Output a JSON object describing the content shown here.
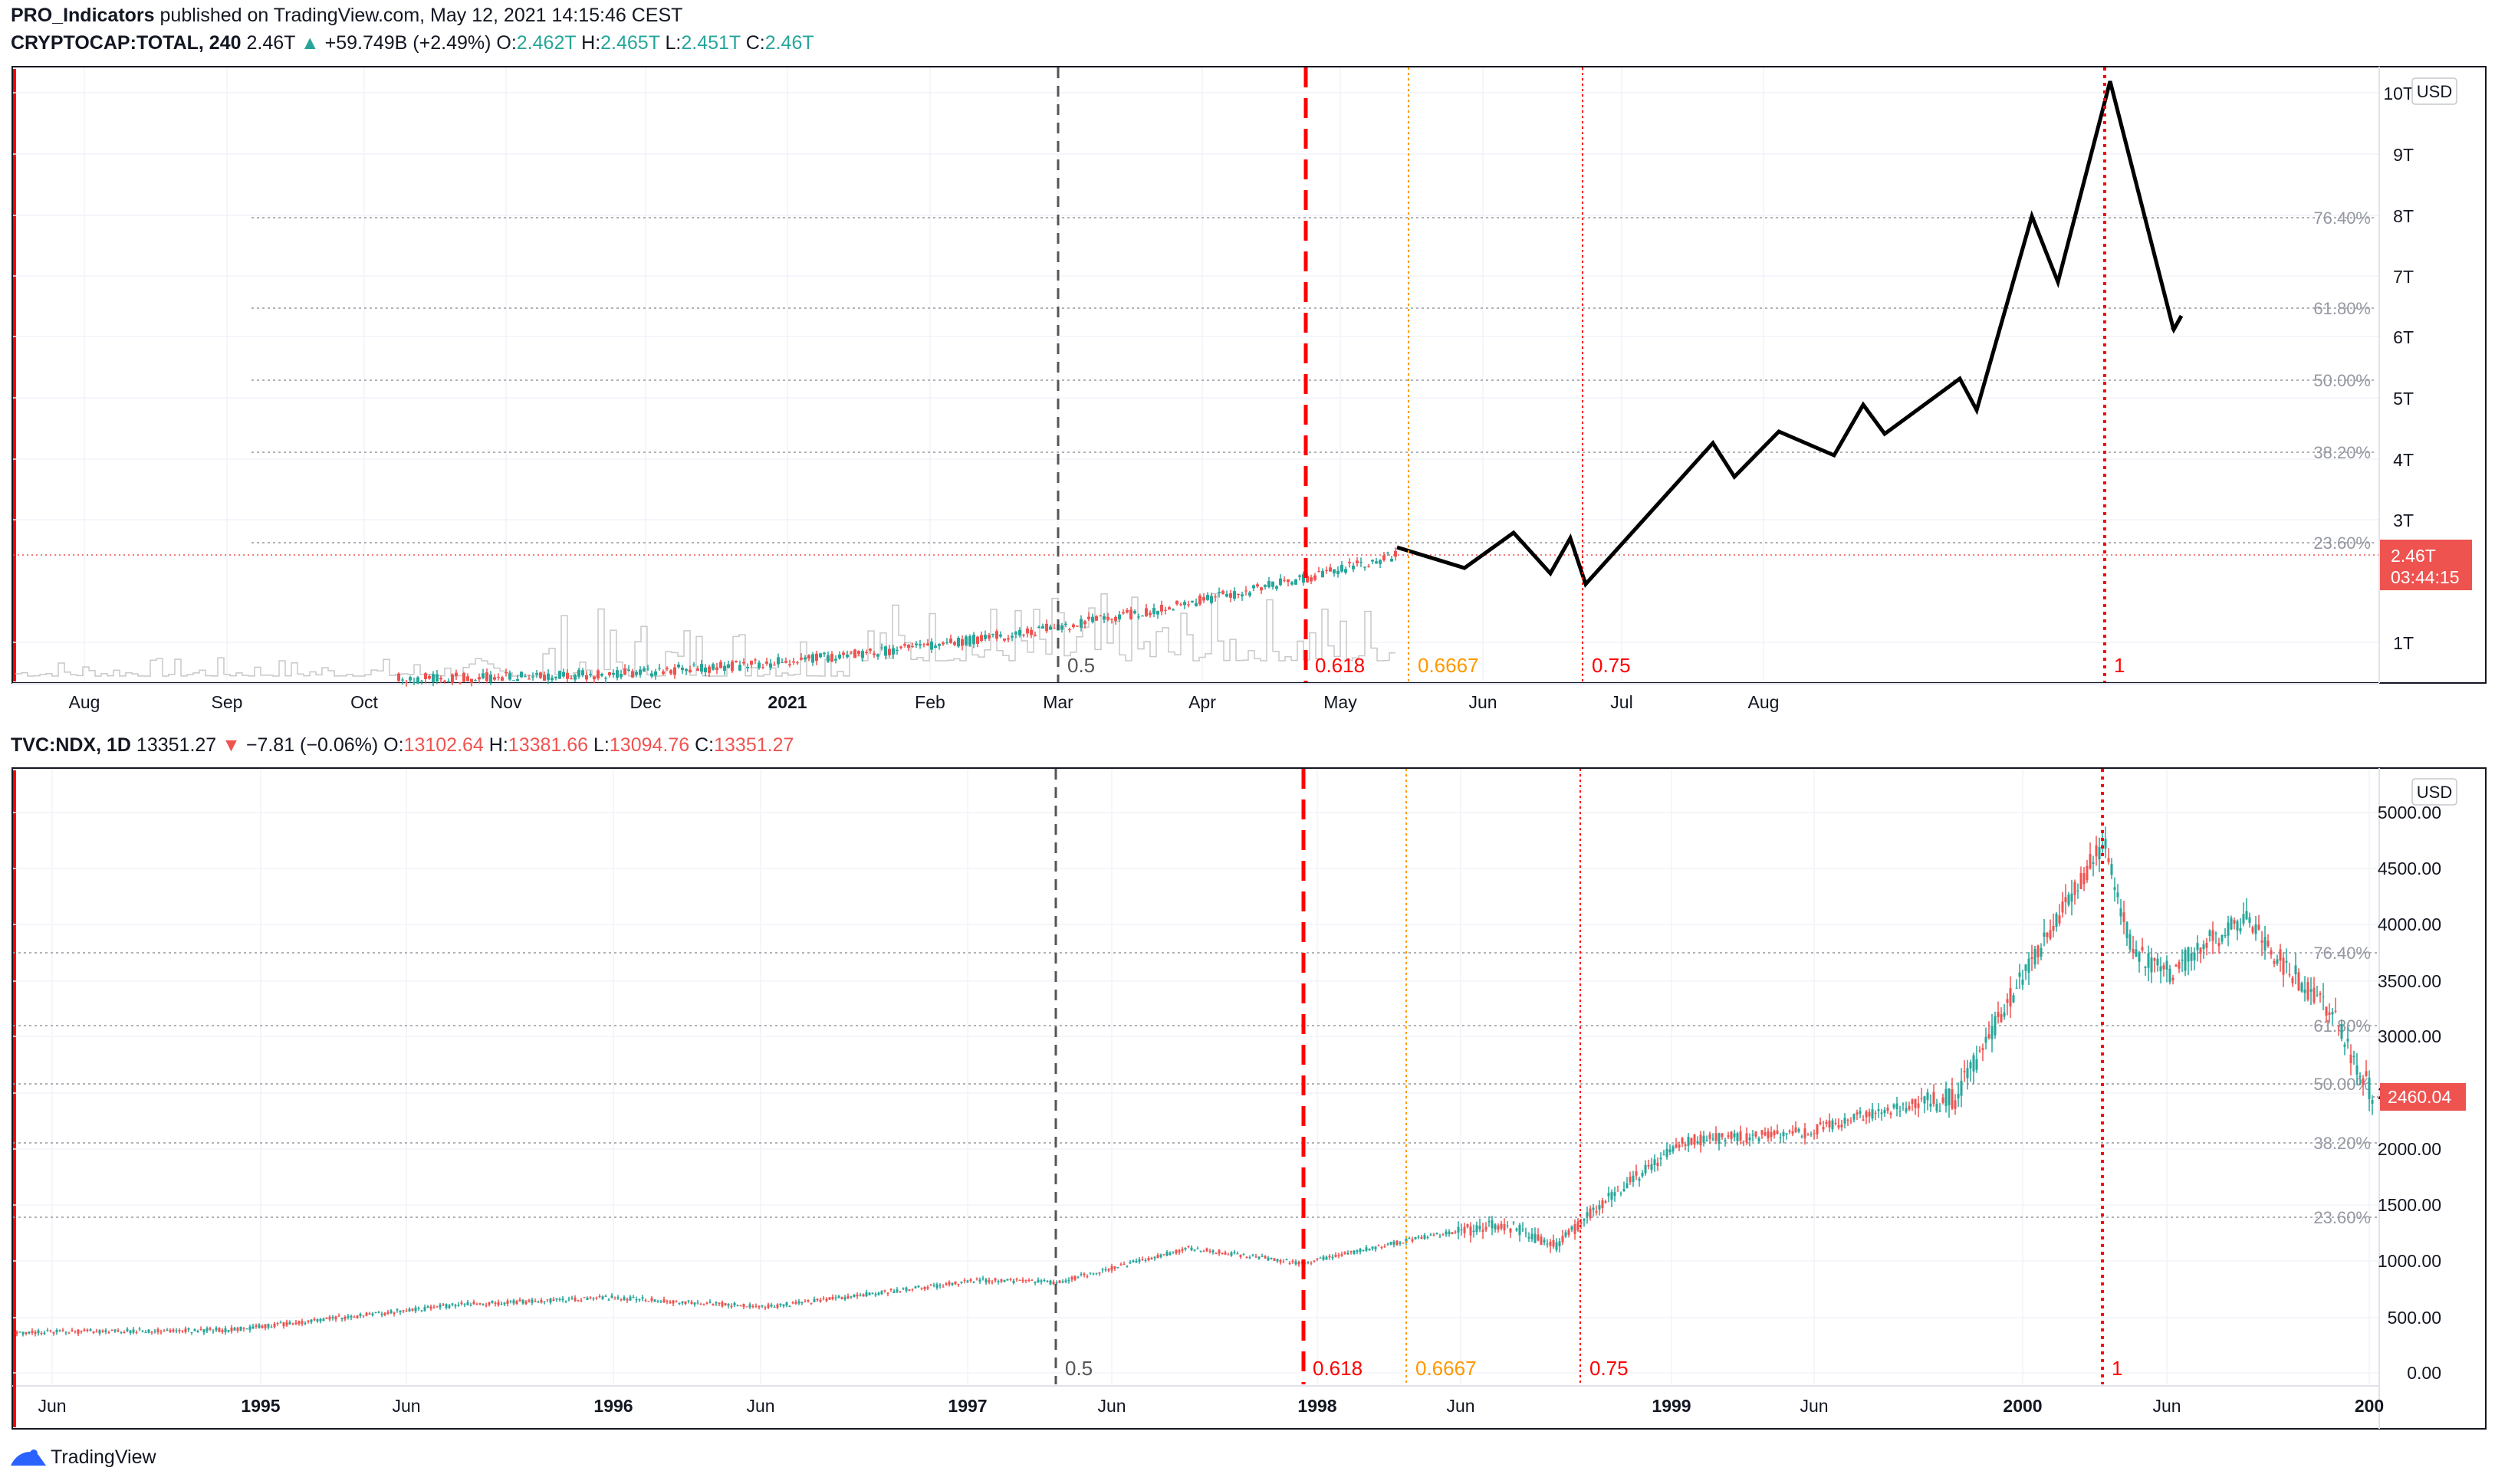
{
  "publisher": {
    "author": "PRO_Indicators",
    "text": "published on TradingView.com, May 12, 2021 14:15:46 CEST"
  },
  "branding": {
    "logo_text": "TradingView"
  },
  "colors": {
    "up": "#26a69a",
    "down": "#ef5350",
    "fib_050": "#555555",
    "fib_0618": "#ff0000",
    "fib_06667": "#ff9800",
    "fib_075": "#ff0000",
    "fib_1": "#ff0000",
    "projection": "#000000",
    "price_label_bg": "#ef5350"
  },
  "top_chart": {
    "symbol": "CRYPTOCAP:TOTAL, 240",
    "last": "2.46T",
    "arrow": "▲",
    "change": "+59.749B (+2.49%)",
    "o_label": "O:",
    "o": "2.462T",
    "h_label": "H:",
    "h": "2.465T",
    "l_label": "L:",
    "l": "2.451T",
    "c_label": "C:",
    "c": "2.46T",
    "currency": "USD",
    "price_label": "2.46T",
    "countdown": "03:44:15",
    "y_ticks": [
      "10T",
      "9T",
      "8T",
      "7T",
      "6T",
      "5T",
      "4T",
      "3T",
      "1T"
    ],
    "x_ticks": [
      "Aug",
      "Sep",
      "Oct",
      "Nov",
      "Dec",
      "2021",
      "Feb",
      "Mar",
      "Apr",
      "May",
      "Jun",
      "Jul",
      "Aug"
    ],
    "fib_levels": [
      "76.40%",
      "61.80%",
      "50.00%",
      "38.20%",
      "23.60%"
    ],
    "time_fib_labels": [
      "0.5",
      "0.618",
      "0.6667",
      "0.75",
      "1"
    ]
  },
  "bottom_chart": {
    "symbol": "TVC:NDX, 1D",
    "last": "13351.27",
    "arrow": "▼",
    "change": "−7.81 (−0.06%)",
    "o_label": "O:",
    "o": "13102.64",
    "h_label": "H:",
    "h": "13381.66",
    "l_label": "L:",
    "l": "13094.76",
    "c_label": "C:",
    "c": "13351.27",
    "currency": "USD",
    "price_label": "2460.04",
    "y_ticks": [
      "5000.00",
      "4500.00",
      "4000.00",
      "3500.00",
      "3000.00",
      "2500.00",
      "2000.00",
      "1500.00",
      "1000.00",
      "500.00",
      "0.00"
    ],
    "x_ticks": [
      "Jun",
      "1995",
      "Jun",
      "1996",
      "Jun",
      "1997",
      "Jun",
      "1998",
      "Jun",
      "1999",
      "Jun",
      "2000",
      "Jun",
      "200"
    ],
    "fib_levels": [
      "76.40%",
      "61.80%",
      "50.00%",
      "38.20%",
      "23.60%"
    ],
    "time_fib_labels": [
      "0.5",
      "0.618",
      "0.6667",
      "0.75",
      "1"
    ]
  }
}
